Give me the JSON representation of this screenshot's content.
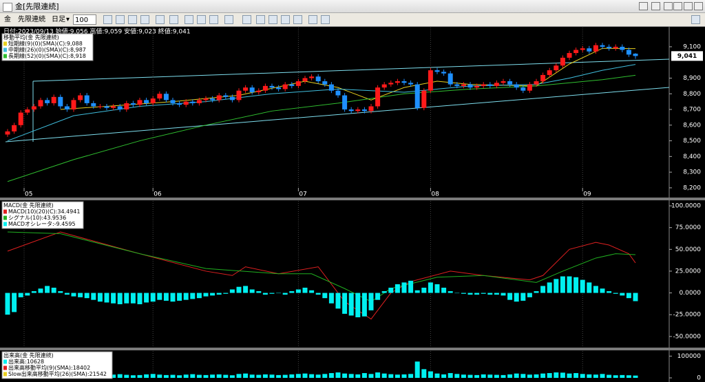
{
  "window": {
    "title": "金[先限連続]"
  },
  "toolbar": {
    "symbol": "金",
    "contract": "先限連続",
    "period": "日足",
    "count": "100"
  },
  "chart_data": [
    {
      "type": "candlestick",
      "header": "日付:2023/09/13 始値:9,056 高値:9,059 安値:9,023 終値:9,041",
      "legend_title": "移動平均(金 先限連続)",
      "up_color": "#ff1a1a",
      "down_color": "#1e90ff",
      "grid": "x",
      "ylim": [
        8160,
        9170
      ],
      "yticks": [
        {
          "value": 8200,
          "label": "8,200"
        },
        {
          "value": 8300,
          "label": "8,300"
        },
        {
          "value": 8400,
          "label": "8,400"
        },
        {
          "value": 8500,
          "label": "8,500"
        },
        {
          "value": 8600,
          "label": "8,600"
        },
        {
          "value": 8700,
          "label": "8,700"
        },
        {
          "value": 8800,
          "label": "8,800"
        },
        {
          "value": 8900,
          "label": "8,900"
        },
        {
          "value": 9100,
          "label": "9,100"
        }
      ],
      "xticks": [
        {
          "value": 2.5,
          "label": "05"
        },
        {
          "value": 22,
          "label": "06"
        },
        {
          "value": 44,
          "label": "07"
        },
        {
          "value": 64,
          "label": "08"
        },
        {
          "value": 87,
          "label": "09"
        }
      ],
      "last_price": {
        "value": 9041,
        "label": "9,041"
      },
      "ohlc": [
        [
          8540,
          8575,
          8525,
          8560
        ],
        [
          8560,
          8615,
          8545,
          8600
        ],
        [
          8600,
          8695,
          8585,
          8680
        ],
        [
          8680,
          8715,
          8665,
          8700
        ],
        [
          8700,
          8735,
          8685,
          8720
        ],
        [
          8720,
          8775,
          8705,
          8760
        ],
        [
          8760,
          8775,
          8725,
          8740
        ],
        [
          8740,
          8795,
          8725,
          8780
        ],
        [
          8780,
          8795,
          8705,
          8720
        ],
        [
          8720,
          8735,
          8685,
          8700
        ],
        [
          8700,
          8775,
          8685,
          8760
        ],
        [
          8760,
          8805,
          8745,
          8790
        ],
        [
          8790,
          8805,
          8725,
          8740
        ],
        [
          8740,
          8755,
          8705,
          8720
        ],
        [
          8720,
          8735,
          8705,
          8720
        ],
        [
          8720,
          8735,
          8695,
          8710
        ],
        [
          8710,
          8735,
          8695,
          8720
        ],
        [
          8720,
          8735,
          8685,
          8700
        ],
        [
          8700,
          8755,
          8685,
          8740
        ],
        [
          8740,
          8755,
          8715,
          8730
        ],
        [
          8730,
          8775,
          8715,
          8760
        ],
        [
          8760,
          8775,
          8725,
          8740
        ],
        [
          8740,
          8785,
          8725,
          8770
        ],
        [
          8770,
          8815,
          8755,
          8800
        ],
        [
          8800,
          8815,
          8745,
          8760
        ],
        [
          8760,
          8775,
          8725,
          8740
        ],
        [
          8740,
          8755,
          8715,
          8730
        ],
        [
          8730,
          8765,
          8715,
          8750
        ],
        [
          8750,
          8765,
          8725,
          8740
        ],
        [
          8740,
          8775,
          8725,
          8760
        ],
        [
          8760,
          8785,
          8745,
          8770
        ],
        [
          8770,
          8785,
          8745,
          8760
        ],
        [
          8760,
          8805,
          8745,
          8790
        ],
        [
          8790,
          8805,
          8765,
          8780
        ],
        [
          8780,
          8795,
          8745,
          8760
        ],
        [
          8760,
          8835,
          8745,
          8820
        ],
        [
          8820,
          8855,
          8805,
          8840
        ],
        [
          8840,
          8855,
          8795,
          8810
        ],
        [
          8810,
          8835,
          8795,
          8820
        ],
        [
          8820,
          8865,
          8805,
          8850
        ],
        [
          8850,
          8865,
          8825,
          8840
        ],
        [
          8840,
          8855,
          8815,
          8830
        ],
        [
          8830,
          8875,
          8815,
          8860
        ],
        [
          8860,
          8875,
          8835,
          8850
        ],
        [
          8850,
          8895,
          8835,
          8880
        ],
        [
          8880,
          8915,
          8865,
          8900
        ],
        [
          8900,
          8925,
          8885,
          8910
        ],
        [
          8910,
          8925,
          8865,
          8880
        ],
        [
          8880,
          8895,
          8845,
          8860
        ],
        [
          8860,
          8875,
          8805,
          8820
        ],
        [
          8820,
          8835,
          8775,
          8790
        ],
        [
          8790,
          8805,
          8685,
          8700
        ],
        [
          8700,
          8715,
          8675,
          8690
        ],
        [
          8690,
          8715,
          8675,
          8700
        ],
        [
          8700,
          8715,
          8675,
          8690
        ],
        [
          8690,
          8735,
          8675,
          8720
        ],
        [
          8720,
          8855,
          8705,
          8840
        ],
        [
          8840,
          8875,
          8825,
          8860
        ],
        [
          8860,
          8885,
          8845,
          8870
        ],
        [
          8870,
          8895,
          8855,
          8880
        ],
        [
          8880,
          8895,
          8855,
          8870
        ],
        [
          8870,
          8885,
          8845,
          8860
        ],
        [
          8860,
          8875,
          8695,
          8710
        ],
        [
          8710,
          8835,
          8695,
          8820
        ],
        [
          8820,
          8965,
          8805,
          8950
        ],
        [
          8950,
          8965,
          8925,
          8940
        ],
        [
          8940,
          8955,
          8915,
          8930
        ],
        [
          8930,
          8945,
          8845,
          8860
        ],
        [
          8860,
          8875,
          8835,
          8850
        ],
        [
          8850,
          8875,
          8835,
          8860
        ],
        [
          8860,
          8875,
          8825,
          8840
        ],
        [
          8840,
          8865,
          8825,
          8850
        ],
        [
          8850,
          8875,
          8835,
          8860
        ],
        [
          8860,
          8875,
          8835,
          8850
        ],
        [
          8850,
          8885,
          8835,
          8870
        ],
        [
          8870,
          8895,
          8855,
          8880
        ],
        [
          8880,
          8895,
          8845,
          8860
        ],
        [
          8860,
          8875,
          8825,
          8840
        ],
        [
          8840,
          8855,
          8805,
          8820
        ],
        [
          8820,
          8875,
          8805,
          8860
        ],
        [
          8860,
          8895,
          8845,
          8880
        ],
        [
          8880,
          8935,
          8865,
          8920
        ],
        [
          8920,
          8965,
          8905,
          8950
        ],
        [
          8950,
          8995,
          8935,
          8980
        ],
        [
          8980,
          9045,
          8965,
          9030
        ],
        [
          9030,
          9075,
          9015,
          9060
        ],
        [
          9060,
          9095,
          9045,
          9080
        ],
        [
          9080,
          9105,
          9065,
          9090
        ],
        [
          9090,
          9105,
          9055,
          9070
        ],
        [
          9070,
          9125,
          9055,
          9110
        ],
        [
          9110,
          9125,
          9085,
          9100
        ],
        [
          9100,
          9115,
          9075,
          9090
        ],
        [
          9090,
          9115,
          9075,
          9100
        ],
        [
          9100,
          9115,
          9065,
          9080
        ],
        [
          9080,
          9095,
          9035,
          9050
        ],
        [
          9056,
          9059,
          9023,
          9041
        ]
      ],
      "series": [
        {
          "name": "短期線(9)(0)(SMA)(C):9,088",
          "color": "#e8d020",
          "kind": "line",
          "x": [
            8,
            15,
            25,
            35,
            45,
            50,
            55,
            60,
            65,
            70,
            80,
            85,
            90,
            95
          ],
          "values": [
            8700,
            8720,
            8750,
            8790,
            8880,
            8840,
            8760,
            8840,
            8880,
            8860,
            8850,
            8990,
            9090,
            9088
          ]
        },
        {
          "name": "中期線(26)(0)(SMA)(C):8,987",
          "color": "#40c0e0",
          "kind": "line",
          "x": [
            0,
            10,
            20,
            30,
            40,
            50,
            60,
            70,
            80,
            85,
            90,
            95
          ],
          "values": [
            8500,
            8660,
            8720,
            8750,
            8800,
            8830,
            8810,
            8850,
            8860,
            8900,
            8950,
            8987
          ]
        },
        {
          "name": "長期線(52)(0)(SMA)(C):8,918",
          "color": "#30c030",
          "kind": "line",
          "x": [
            0,
            10,
            20,
            30,
            40,
            50,
            60,
            70,
            80,
            90,
            95
          ],
          "values": [
            8240,
            8380,
            8500,
            8600,
            8690,
            8740,
            8800,
            8830,
            8850,
            8890,
            8918
          ]
        }
      ]
    },
    {
      "type": "oscillator",
      "legend_title": "MACD(金 先限連続)",
      "ylim": [
        -62,
        104
      ],
      "yticks": [
        {
          "value": 100,
          "label": "100.0000"
        },
        {
          "value": 75,
          "label": "75.0000"
        },
        {
          "value": 50,
          "label": "50.0000"
        },
        {
          "value": 25,
          "label": "25.0000"
        },
        {
          "value": 0,
          "label": "0.0000"
        },
        {
          "value": -25,
          "label": "-25.0000"
        },
        {
          "value": -50,
          "label": "-50.0000"
        }
      ],
      "series": [
        {
          "name": "MACD(10)(20)(C):34.4941",
          "color": "#e02020",
          "kind": "line",
          "x": [
            0,
            8,
            20,
            30,
            34,
            36,
            41,
            47,
            51,
            55,
            58,
            61,
            67,
            72,
            79,
            81,
            85,
            89,
            91,
            94,
            95
          ],
          "values": [
            48,
            70,
            45,
            25,
            20,
            30,
            22,
            30,
            -10,
            -30,
            0,
            13,
            25,
            20,
            15,
            20,
            50,
            58,
            55,
            45,
            34.4941
          ]
        },
        {
          "name": "シグナル(10):43.9536",
          "color": "#20b020",
          "kind": "line",
          "x": [
            0,
            8,
            20,
            30,
            41,
            46,
            51,
            55,
            58,
            65,
            72,
            80,
            84,
            89,
            92,
            95
          ],
          "values": [
            70,
            68,
            45,
            28,
            22,
            22,
            5,
            -10,
            5,
            18,
            20,
            12,
            25,
            40,
            45,
            43.9536
          ]
        },
        {
          "name": "MACDオシレータ:-9.4595",
          "color": "#00f0f0",
          "kind": "bar",
          "values": [
            -25,
            -22,
            -5,
            -3,
            2,
            5,
            8,
            6,
            2,
            -2,
            -4,
            -5,
            -6,
            -8,
            -10,
            -11,
            -12,
            -13,
            -12,
            -12,
            -13,
            -11,
            -10,
            -8,
            -9,
            -10,
            -9,
            -8,
            -7,
            -6,
            -4,
            -3,
            -2,
            -1,
            4,
            7,
            8,
            4,
            2,
            -2,
            -1,
            0,
            -2,
            2,
            4,
            6,
            3,
            -2,
            -6,
            -12,
            -18,
            -24,
            -26,
            -28,
            -27,
            -20,
            -8,
            2,
            6,
            10,
            12,
            14,
            3,
            6,
            12,
            10,
            6,
            2,
            0,
            -1,
            -2,
            -2,
            -1,
            -2,
            -2,
            -3,
            -8,
            -10,
            -9,
            -5,
            2,
            8,
            12,
            16,
            19,
            19,
            18,
            15,
            12,
            8,
            5,
            2,
            -1,
            -3,
            -6,
            -9.4595
          ]
        }
      ]
    },
    {
      "type": "volume",
      "legend_title": "出来高(金 先限連続)",
      "ylim": [
        0,
        117000
      ],
      "yticks": [
        0,
        100000
      ],
      "series": [
        {
          "name": "出来高:10628",
          "color": "#00f0f0",
          "kind": "bar",
          "values": [
            14000,
            12000,
            18000,
            22000,
            16000,
            15000,
            13000,
            17000,
            14000,
            12000,
            15000,
            18000,
            16000,
            14000,
            12000,
            13000,
            15000,
            17000,
            14000,
            12000,
            13000,
            16000,
            18000,
            15000,
            13000,
            14000,
            12000,
            15000,
            17000,
            14000,
            13000,
            15000,
            16000,
            14000,
            12000,
            18000,
            20000,
            15000,
            14000,
            16000,
            15000,
            13000,
            14000,
            16000,
            18000,
            20000,
            17000,
            15000,
            18000,
            22000,
            25000,
            20000,
            18000,
            16000,
            22000,
            18000,
            25000,
            20000,
            17000,
            15000,
            16000,
            18000,
            75000,
            40000,
            30000,
            20000,
            16000,
            22000,
            18000,
            15000,
            14000,
            13000,
            16000,
            15000,
            14000,
            13000,
            16000,
            20000,
            18000,
            15000,
            16000,
            20000,
            22000,
            25000,
            24000,
            20000,
            22000,
            18000,
            16000,
            15000,
            18000,
            14000,
            12000,
            13000,
            12000,
            10628
          ]
        },
        {
          "name": "出来高移動平均(9)(SMA):18402",
          "color": "#e02020"
        },
        {
          "name": "Slow出来高移動平均(26)(SMA):21542",
          "color": "#e8d020"
        }
      ]
    }
  ]
}
